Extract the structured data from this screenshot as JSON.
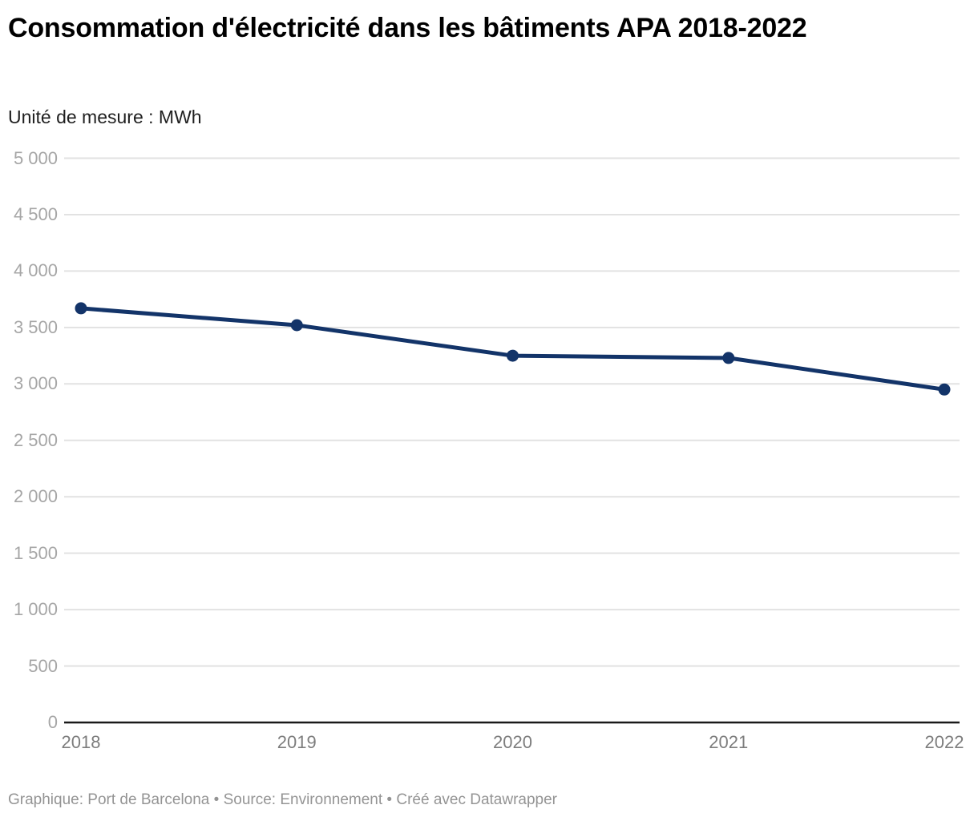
{
  "header": {
    "title": "Consommation d'électricité dans les bâtiments APA 2018-2022",
    "subtitle": "Unité de mesure : MWh"
  },
  "chart_data": {
    "type": "line",
    "title": "Consommation d'électricité dans les bâtiments APA 2018-2022",
    "unit_label": "Unité de mesure : MWh",
    "x": [
      "2018",
      "2019",
      "2020",
      "2021",
      "2022"
    ],
    "series": [
      {
        "name": "Consommation d'électricité",
        "values": [
          3670,
          3520,
          3250,
          3230,
          2950
        ]
      }
    ],
    "ylim": [
      0,
      5000
    ],
    "yticks": [
      0,
      500,
      1000,
      1500,
      2000,
      2500,
      3000,
      3500,
      4000,
      4500,
      5000
    ],
    "ytick_labels": [
      "0",
      "500",
      "1 000",
      "1 500",
      "2 000",
      "2 500",
      "3 000",
      "3 500",
      "4 000",
      "4 500",
      "5 000"
    ],
    "grid": true,
    "legend": "none",
    "colors": {
      "line": "#133469",
      "gridline": "#e2e2e2",
      "axis_baseline": "#1a1a1a",
      "y_label": "#a6a6a6",
      "x_label": "#7d7d7d"
    }
  },
  "footer": {
    "text": "Graphique: Port de Barcelona • Source: Environnement • Créé avec Datawrapper"
  }
}
